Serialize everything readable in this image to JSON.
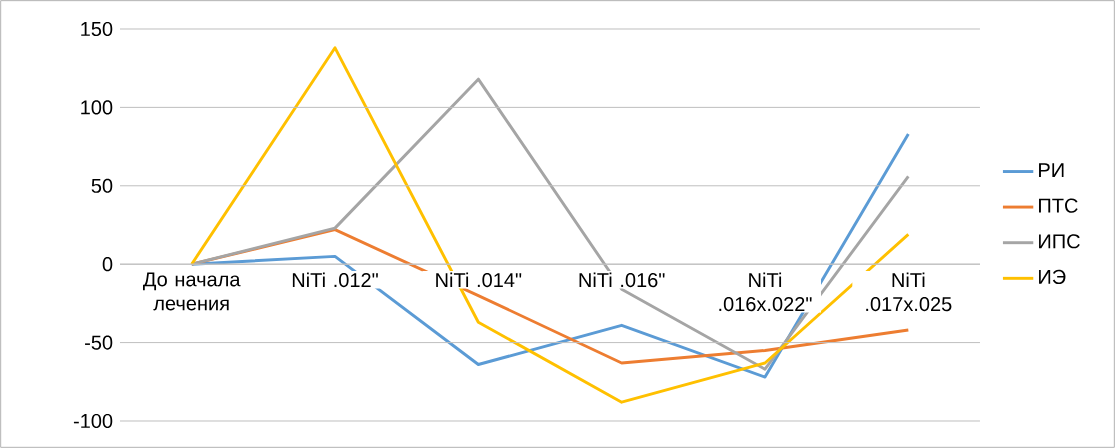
{
  "chart_data": {
    "type": "line",
    "categories": [
      "До начала лечения",
      "NiTi .012\"",
      "NiTi .014\"",
      "NiTi .016\"",
      "NiTi .016x.022\"",
      "NiTi .017x.025"
    ],
    "series": [
      {
        "name": "РИ",
        "color": "#5b9bd5",
        "values": [
          0,
          5,
          -64,
          -39,
          -72,
          83
        ]
      },
      {
        "name": "ПТС",
        "color": "#ed7d31",
        "values": [
          0,
          22,
          -20,
          -63,
          -55,
          -42
        ]
      },
      {
        "name": "ИПС",
        "color": "#a5a5a5",
        "values": [
          0,
          23,
          118,
          -16,
          -67,
          56
        ]
      },
      {
        "name": "ИЭ",
        "color": "#ffc000",
        "values": [
          0,
          138,
          -37,
          -88,
          -63,
          19
        ]
      }
    ],
    "ylim": [
      -100,
      150
    ],
    "yticks": [
      -100,
      -50,
      0,
      50,
      100,
      150
    ],
    "grid": "y",
    "legend": "right",
    "marker": "none",
    "line_style": "solid"
  }
}
